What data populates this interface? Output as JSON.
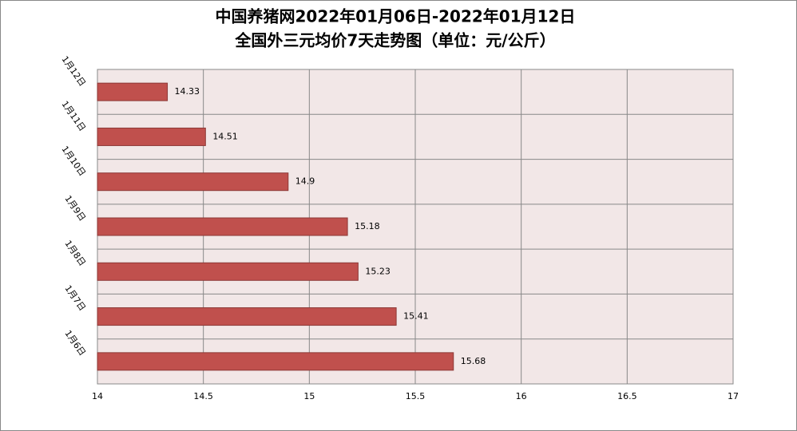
{
  "chart_data": {
    "type": "bar",
    "orientation": "horizontal",
    "title": "中国养猪网2022年01月06日-2022年01月12日",
    "subtitle": "全国外三元均价7天走势图（单位：元/公斤）",
    "categories": [
      "1月12日",
      "1月11日",
      "1月10日",
      "1月9日",
      "1月8日",
      "1月7日",
      "1月6日"
    ],
    "values": [
      14.33,
      14.51,
      14.9,
      15.18,
      15.23,
      15.41,
      15.68
    ],
    "color": "#c0504d",
    "xlim": [
      14,
      17
    ],
    "xticks": [
      14,
      14.5,
      15,
      15.5,
      16,
      16.5,
      17
    ],
    "grid": true
  }
}
